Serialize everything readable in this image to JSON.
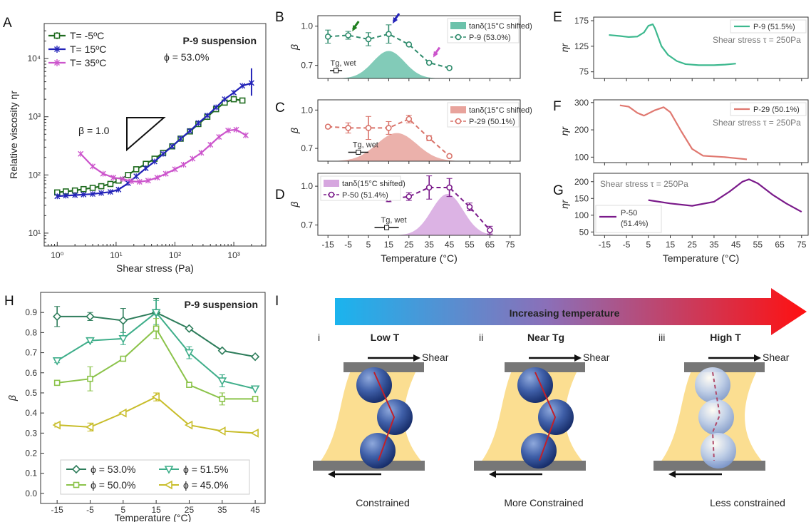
{
  "panel_letters": [
    "A",
    "B",
    "C",
    "D",
    "E",
    "F",
    "G",
    "H",
    "I"
  ],
  "chart_data": [
    {
      "id": "A",
      "type": "line",
      "title": "P-9 suspension",
      "subtitle": "ϕ = 53.0%",
      "xlabel": "Shear stress (Pa)",
      "ylabel": "Relative viscosity ηr",
      "xscale": "log",
      "yscale": "log",
      "xlim": [
        0.6,
        3500
      ],
      "ylim": [
        6,
        40000
      ],
      "xticks": [
        1,
        10,
        100,
        1000
      ],
      "yticks": [
        10,
        100,
        1000,
        10000
      ],
      "annotation": "β = 1.0",
      "legend": {
        "position": "top-left"
      },
      "series": [
        {
          "name": "T= -5ºC",
          "color": "#1f6b1f",
          "marker": "square",
          "x": [
            1,
            1.4,
            2,
            2.8,
            4,
            5.6,
            8,
            11,
            16,
            22,
            32,
            45,
            63,
            90,
            125,
            180,
            250,
            355,
            500,
            700,
            1000,
            1400
          ],
          "y": [
            50,
            52,
            54,
            57,
            60,
            64,
            70,
            80,
            100,
            125,
            155,
            190,
            240,
            310,
            420,
            560,
            750,
            1000,
            1350,
            1750,
            2000,
            1900
          ]
        },
        {
          "name": "T= 15ºC",
          "color": "#2323b8",
          "marker": "x",
          "x": [
            1,
            1.4,
            2,
            2.8,
            4,
            5.6,
            8,
            11,
            16,
            22,
            32,
            45,
            63,
            90,
            125,
            180,
            250,
            355,
            500,
            700,
            1000,
            1400,
            2000
          ],
          "y": [
            43,
            44,
            45,
            46,
            47,
            49,
            51,
            56,
            72,
            95,
            130,
            170,
            230,
            310,
            420,
            570,
            780,
            1050,
            1450,
            2000,
            2600,
            3400,
            3800
          ],
          "yerr_last": [
            1500,
            3000
          ]
        },
        {
          "name": "T= 35ºC",
          "color": "#cc55cc",
          "marker": "x",
          "x": [
            2.5,
            4,
            6,
            9,
            13,
            18,
            25,
            35,
            50,
            70,
            100,
            140,
            200,
            280,
            400,
            560,
            800,
            1100,
            1600
          ],
          "y": [
            230,
            140,
            105,
            90,
            85,
            78,
            76,
            80,
            90,
            105,
            125,
            150,
            190,
            240,
            330,
            450,
            580,
            600,
            480
          ]
        }
      ]
    },
    {
      "id": "B",
      "type": "line",
      "ylabel": "β",
      "ylim": [
        0.6,
        1.08
      ],
      "yticks": [
        0.7,
        1.0
      ],
      "x": [
        -15,
        -5,
        5,
        15,
        25,
        35,
        45
      ],
      "series": [
        {
          "name": "P-9 (53.0%)",
          "color": "#2e8b6c",
          "y": [
            0.92,
            0.93,
            0.9,
            0.94,
            0.86,
            0.72,
            0.68
          ],
          "err": [
            0.05,
            0.03,
            0.05,
            0.07,
            0,
            0,
            0
          ]
        }
      ],
      "shade": {
        "name": "tanδ(15°C shifted)",
        "color": "#6cc2ab",
        "peak_x": 15,
        "peak_y": 0.81,
        "width": 11
      },
      "tg_label": "Tg, wet",
      "tg_x": -11,
      "tg_err": 3,
      "arrows": [
        {
          "x": -3,
          "color": "#1f7f1f"
        },
        {
          "x": 17,
          "color": "#2323b8"
        },
        {
          "x": 37,
          "color": "#cc55cc"
        }
      ],
      "legend": {
        "position": "top-right"
      }
    },
    {
      "id": "C",
      "type": "line",
      "ylabel": "β",
      "ylim": [
        0.6,
        1.08
      ],
      "yticks": [
        0.7,
        1.0
      ],
      "x": [
        -15,
        -5,
        5,
        15,
        25,
        35,
        45
      ],
      "series": [
        {
          "name": "P-29 (50.1%)",
          "color": "#d9736a",
          "y": [
            0.87,
            0.86,
            0.86,
            0.86,
            0.93,
            0.78,
            0.64
          ],
          "err": [
            0.01,
            0.04,
            0.09,
            0.05,
            0.03,
            0.02,
            0
          ]
        }
      ],
      "shade": {
        "name": "tanδ(15°C shifted)",
        "color": "#e8a39c",
        "peak_x": 19,
        "peak_y": 0.82,
        "width": 14
      },
      "tg_label": "Tg, wet",
      "tg_x": 0,
      "tg_err": 5,
      "legend": {
        "position": "top-right"
      }
    },
    {
      "id": "D",
      "type": "line",
      "ylabel": "β",
      "xlabel": "Temperature (°C)",
      "ylim": [
        0.62,
        1.1
      ],
      "yticks": [
        0.7,
        1.0
      ],
      "xticks": [
        -15,
        -5,
        5,
        15,
        25,
        35,
        45,
        55,
        65,
        75
      ],
      "x": [
        15,
        25,
        35,
        45,
        55,
        65
      ],
      "series": [
        {
          "name": "P-50 (51.4%)",
          "color": "#7a1a8a",
          "y": [
            0.9,
            0.92,
            0.99,
            0.99,
            0.84,
            0.66
          ],
          "err": [
            0.02,
            0.03,
            0.09,
            0.07,
            0.03,
            0.03
          ]
        }
      ],
      "shade": {
        "name": "tanδ(15°C shifted)",
        "color": "#d6a6df",
        "peak_x": 44,
        "peak_y": 0.94,
        "width": 11
      },
      "tg_label": "Tg, wet",
      "tg_x": 14,
      "tg_err": 6,
      "legend": {
        "position": "top-left"
      }
    },
    {
      "id": "E",
      "type": "line",
      "ylabel": "ηr",
      "ylim": [
        62,
        182
      ],
      "yticks": [
        75,
        125,
        175
      ],
      "note": "Shear stress τ = 250Pa",
      "series": [
        {
          "name": "P-9 (51.5%)",
          "color": "#3cb88e",
          "x": [
            -13,
            -8,
            -4,
            0,
            3,
            5,
            7,
            8,
            11,
            14,
            18,
            22,
            28,
            35,
            40,
            45
          ],
          "y": [
            147,
            145,
            143,
            144,
            152,
            165,
            168,
            160,
            125,
            108,
            96,
            90,
            88,
            88,
            89,
            91
          ]
        }
      ],
      "legend": {
        "position": "top-right"
      }
    },
    {
      "id": "F",
      "type": "line",
      "ylabel": "ηr",
      "ylim": [
        80,
        310
      ],
      "yticks": [
        100,
        200,
        300
      ],
      "note": "Shear stress τ = 250Pa",
      "series": [
        {
          "name": "P-29 (50.1%)",
          "color": "#e07870",
          "x": [
            -8,
            -4,
            0,
            3,
            8,
            12,
            15,
            20,
            25,
            30,
            40,
            50
          ],
          "y": [
            290,
            285,
            262,
            252,
            272,
            283,
            265,
            195,
            130,
            105,
            100,
            92
          ]
        }
      ],
      "legend": {
        "position": "top-right"
      }
    },
    {
      "id": "G",
      "type": "line",
      "ylabel": "ηr",
      "xlabel": "Temperature (°C)",
      "ylim": [
        40,
        225
      ],
      "yticks": [
        50,
        100,
        150,
        200
      ],
      "xticks": [
        -15,
        -5,
        5,
        15,
        25,
        35,
        45,
        55,
        65,
        75
      ],
      "note": "Shear stress τ = 250Pa",
      "series": [
        {
          "name": "P-50 (51.4%)",
          "color": "#7a1a8a",
          "x": [
            5,
            15,
            25,
            35,
            42,
            48,
            51,
            55,
            62,
            68,
            75
          ],
          "y": [
            145,
            135,
            128,
            140,
            170,
            200,
            207,
            195,
            160,
            135,
            110
          ]
        }
      ],
      "legend": {
        "position": "bottom-left"
      }
    },
    {
      "id": "H",
      "type": "line",
      "title": "P-9 suspension",
      "xlabel": "Temperature (°C)",
      "ylabel": "β",
      "xlim": [
        -20,
        48
      ],
      "ylim": [
        -0.05,
        1.0
      ],
      "xticks": [
        -15,
        -5,
        5,
        15,
        25,
        35,
        45
      ],
      "yticks": [
        0.0,
        0.1,
        0.2,
        0.3,
        0.4,
        0.5,
        0.6,
        0.7,
        0.8,
        0.9
      ],
      "x": [
        -15,
        -5,
        5,
        15,
        25,
        35,
        45
      ],
      "legend": {
        "position": "bottom"
      },
      "series": [
        {
          "name": "ϕ = 53.0%",
          "color": "#2e7d5b",
          "marker": "diamond",
          "y": [
            0.88,
            0.88,
            0.86,
            0.9,
            0.82,
            0.71,
            0.68
          ],
          "err": [
            0.05,
            0.02,
            0.06,
            0.07,
            0,
            0,
            0
          ]
        },
        {
          "name": "ϕ = 51.5%",
          "color": "#3fae8a",
          "marker": "tri-down",
          "y": [
            0.66,
            0.76,
            0.77,
            0.9,
            0.7,
            0.56,
            0.52
          ],
          "err": [
            0.01,
            0.01,
            0.03,
            0.06,
            0.03,
            0.03,
            0
          ]
        },
        {
          "name": "ϕ = 50.0%",
          "color": "#8bc34a",
          "marker": "square",
          "y": [
            0.55,
            0.57,
            0.67,
            0.82,
            0.54,
            0.47,
            0.47
          ],
          "err": [
            0.01,
            0.06,
            0,
            0.05,
            0,
            0.03,
            0.01
          ]
        },
        {
          "name": "ϕ = 45.0%",
          "color": "#c8bd2a",
          "marker": "tri-left",
          "y": [
            0.34,
            0.33,
            0.4,
            0.48,
            0.34,
            0.31,
            0.3
          ],
          "err": [
            0.01,
            0.02,
            0,
            0.02,
            0,
            0,
            0
          ]
        }
      ]
    }
  ],
  "schematic": {
    "arrow_label": "Increasing temperature",
    "shear_label": "Shear",
    "panels": [
      {
        "roman": "i",
        "title": "Low T",
        "title_color": "#1a9ad6",
        "caption": "Constrained",
        "caption_color": "#2596d6",
        "mode": "low"
      },
      {
        "roman": "ii",
        "title": "Near Tg",
        "title_color": "#8a4d8f",
        "caption": "More Constrained",
        "caption_color": "#a86aaa",
        "mode": "near"
      },
      {
        "roman": "iii",
        "title": "High T",
        "title_color": "#dd1f2a",
        "caption": "Less constrained",
        "caption_color": "#dd1f2a",
        "mode": "high"
      }
    ]
  }
}
